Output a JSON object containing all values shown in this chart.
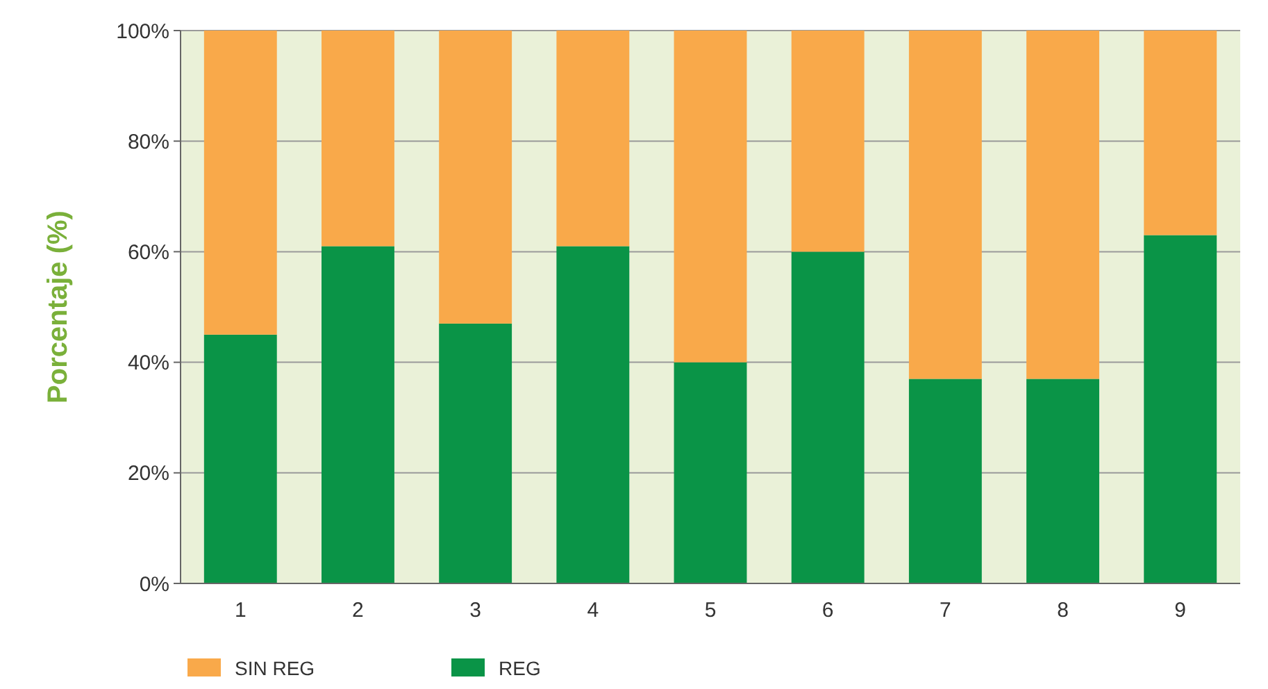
{
  "chart_data": {
    "type": "bar",
    "stacked": true,
    "ylabel": "Porcentaje (%)",
    "categories": [
      "1",
      "2",
      "3",
      "4",
      "5",
      "6",
      "7",
      "8",
      "9"
    ],
    "series": [
      {
        "name": "REG",
        "color": "#0a9447",
        "values": [
          45,
          61,
          47,
          61,
          40,
          60,
          37,
          37,
          63
        ]
      },
      {
        "name": "SIN REG",
        "color": "#f9a94a",
        "values": [
          55,
          39,
          53,
          39,
          60,
          40,
          63,
          63,
          37
        ]
      }
    ],
    "ylim": [
      0,
      100
    ],
    "yticks": [
      {
        "value": 0,
        "label": "0%"
      },
      {
        "value": 20,
        "label": "20%"
      },
      {
        "value": 40,
        "label": "40%"
      },
      {
        "value": 60,
        "label": "60%"
      },
      {
        "value": 80,
        "label": "80%"
      },
      {
        "value": 100,
        "label": "100%"
      }
    ],
    "grid": "y",
    "legend": "bottom left"
  }
}
